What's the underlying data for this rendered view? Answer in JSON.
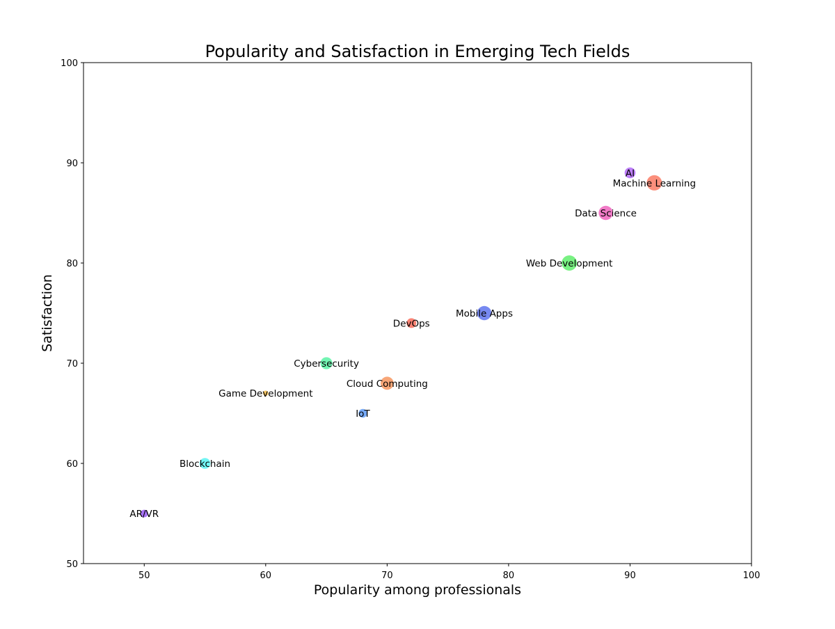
{
  "chart_data": {
    "type": "scatter",
    "title": "Popularity and Satisfaction in Emerging Tech Fields",
    "xlabel": "Popularity among professionals",
    "ylabel": "Satisfaction",
    "xlim": [
      45,
      100
    ],
    "ylim": [
      50,
      100
    ],
    "xticks": [
      50,
      60,
      70,
      80,
      90,
      100
    ],
    "yticks": [
      50,
      60,
      70,
      80,
      90,
      100
    ],
    "grid": false,
    "points": [
      {
        "label": "AI",
        "x": 90,
        "y": 89,
        "size": 6,
        "color": "#a855f7"
      },
      {
        "label": "Machine Learning",
        "x": 92,
        "y": 88,
        "size": 10,
        "color": "#fa6a50"
      },
      {
        "label": "Data Science",
        "x": 88,
        "y": 85,
        "size": 9,
        "color": "#ec4fb4"
      },
      {
        "label": "Web Development",
        "x": 85,
        "y": 80,
        "size": 10,
        "color": "#4cec5a"
      },
      {
        "label": "Mobile Apps",
        "x": 78,
        "y": 75,
        "size": 9,
        "color": "#4a62ec"
      },
      {
        "label": "DevOps",
        "x": 72,
        "y": 74,
        "size": 5,
        "color": "#fa5a46"
      },
      {
        "label": "Cybersecurity",
        "x": 65,
        "y": 70,
        "size": 7,
        "color": "#44f29a"
      },
      {
        "label": "Cloud Computing",
        "x": 70,
        "y": 68,
        "size": 8,
        "color": "#f6884a"
      },
      {
        "label": "Game Development",
        "x": 60,
        "y": 67,
        "size": 1,
        "color": "#f0b030"
      },
      {
        "label": "IoT",
        "x": 68,
        "y": 65,
        "size": 4,
        "color": "#4a8ef4"
      },
      {
        "label": "Blockchain",
        "x": 55,
        "y": 60,
        "size": 6,
        "color": "#44f2f0"
      },
      {
        "label": "AR/VR",
        "x": 50,
        "y": 55,
        "size": 3,
        "color": "#8a44f2"
      }
    ]
  }
}
